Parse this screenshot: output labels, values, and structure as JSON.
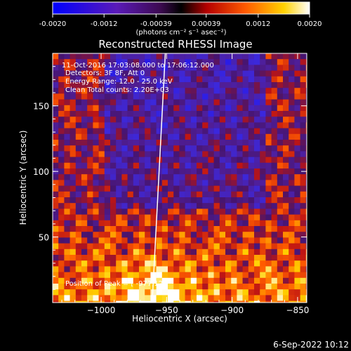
{
  "colorbar": {
    "tick_labels": [
      "-0.0020",
      "-0.0012",
      "-0.00039",
      "0.00039",
      "0.0012",
      "0.0020"
    ],
    "range": [
      -0.002,
      0.002
    ],
    "unit_label": "(photons cm⁻² s⁻¹ asec⁻²)"
  },
  "plot": {
    "title": "Reconstructed RHESSI Image",
    "xlabel": "Heliocentric X (arcsec)",
    "ylabel": "Heliocentric Y (arcsec)",
    "x_tick_labels": [
      "−1000",
      "−950",
      "−900",
      "−850"
    ],
    "y_tick_labels": [
      "50",
      "100",
      "150"
    ],
    "info_lines": [
      "11-Oct-2016 17:03:08.000 to 17:06:12.000",
      "Detectors: 3F 8F, Att 0",
      "Energy Range: 12.0 - 25.0 keV",
      "Clean     Total counts: 2.20E+03"
    ],
    "peak_label": "Position of Peak = [ -977,12]"
  },
  "footer": {
    "date": "6-Sep-2022 10:12"
  },
  "colors": {
    "background": "#000000",
    "limb": "#ffffff",
    "axes": "#ffffff"
  },
  "chart_data": {
    "type": "heatmap",
    "title": "Reconstructed RHESSI Image",
    "xlabel": "Heliocentric X (arcsec)",
    "ylabel": "Heliocentric Y (arcsec)",
    "xlim": [
      -1037,
      -843
    ],
    "ylim": [
      0,
      190
    ],
    "x_ticks": [
      -1000,
      -950,
      -900,
      -850
    ],
    "y_ticks": [
      50,
      100,
      150
    ],
    "colormap": "blue-purple-red-yellow-white",
    "value_range": [
      -0.002,
      0.002
    ],
    "peak": [
      -977,
      12
    ],
    "limb_line": {
      "x": [
        -951,
        -961
      ],
      "y": [
        190,
        0
      ]
    }
  }
}
